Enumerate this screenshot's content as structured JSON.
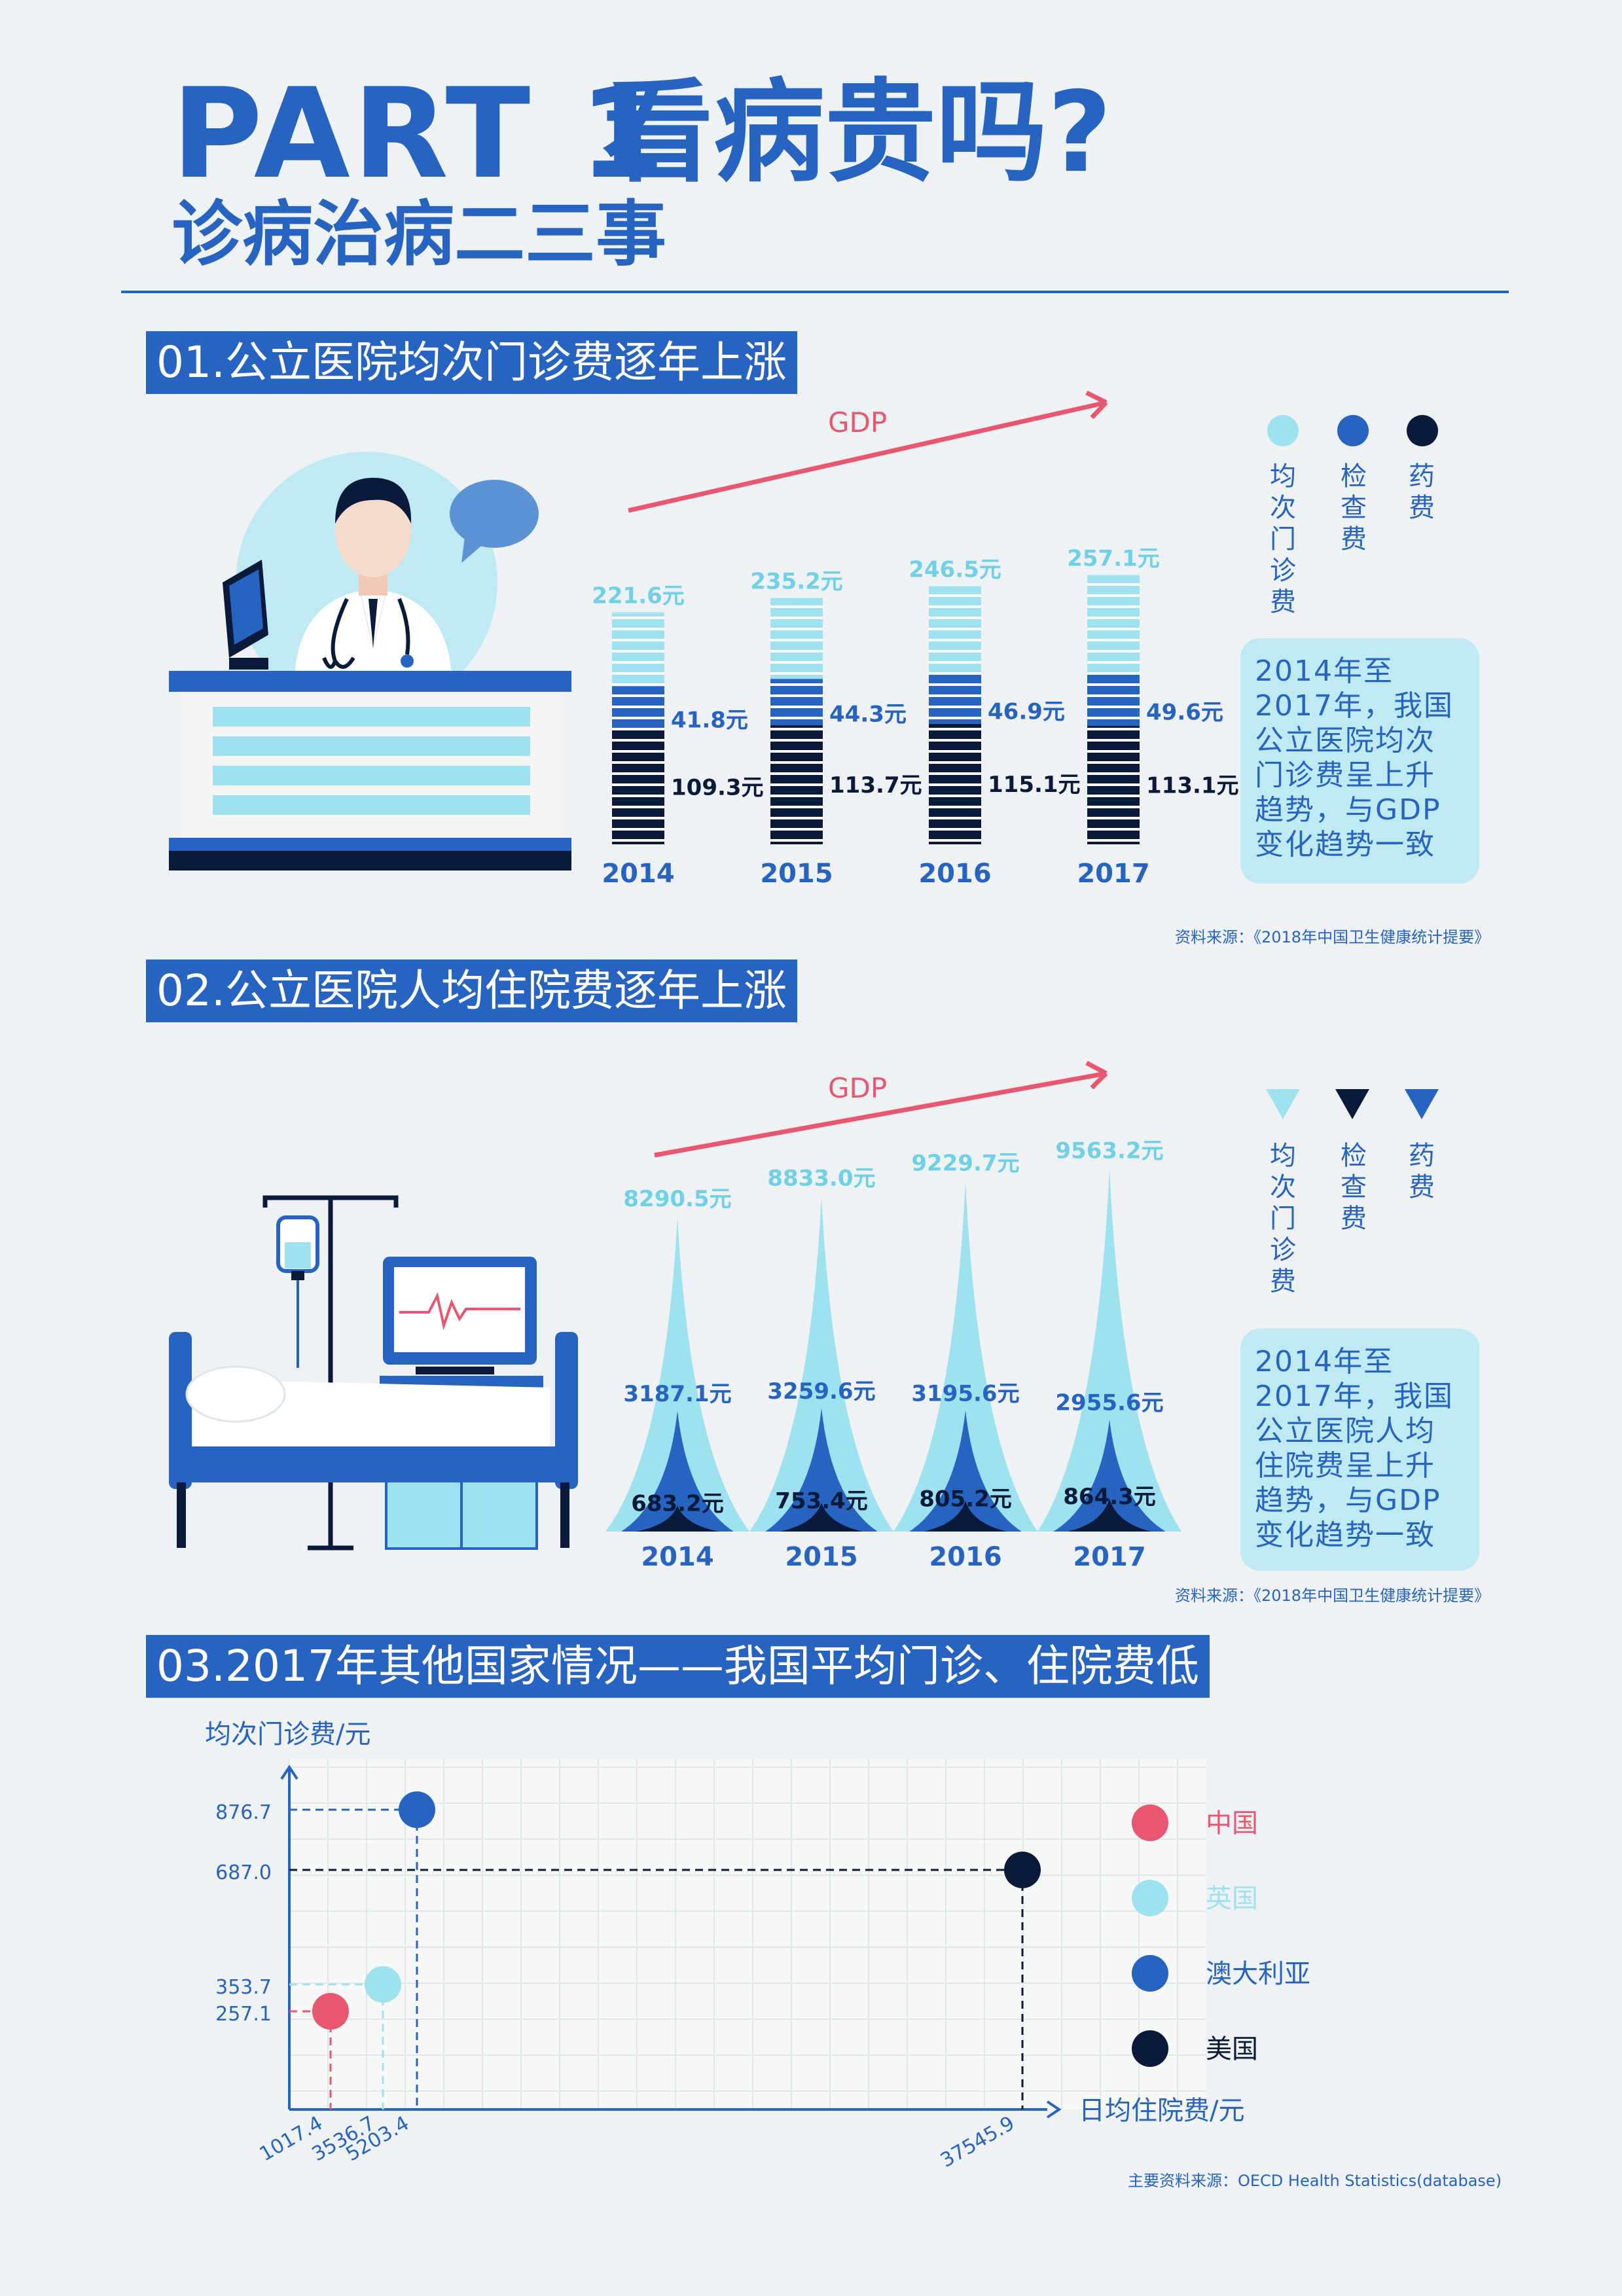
{
  "header": {
    "title_part": "PART 1",
    "title_question": "看病贵吗?",
    "subtitle": "诊病治病二三事"
  },
  "section1": {
    "heading": "01.公立医院均次门诊费逐年上涨",
    "gdp_label": "GDP",
    "legend": [
      "均次门诊费",
      "检查费",
      "药费"
    ],
    "note": "2014年至2017年，我国公立医院均次门诊费呈上升趋势，与GDP变化趋势一致",
    "source": "资料来源：《2018年中国卫生健康统计提要》"
  },
  "section2": {
    "heading": "02.公立医院人均住院费逐年上涨",
    "gdp_label": "GDP",
    "legend": [
      "均次门诊费",
      "检查费",
      "药费"
    ],
    "note": "2014年至2017年，我国公立医院人均住院费呈上升趋势，与GDP变化趋势一致",
    "source": "资料来源：《2018年中国卫生健康统计提要》"
  },
  "section3": {
    "heading": "03.2017年其他国家情况——我国平均门诊、住院费低",
    "source": "主要资料来源：OECD Health Statistics(database)"
  },
  "colors": {
    "primary": "#2763c1",
    "light": "#9fe2ef",
    "dark": "#0a1a3a",
    "china": "#e8566f",
    "gdp_arrow": "#e8566f"
  },
  "chart_data": [
    {
      "type": "bar",
      "title": "01.公立医院均次门诊费逐年上涨",
      "categories": [
        "2014",
        "2015",
        "2016",
        "2017"
      ],
      "unit": "元",
      "series": [
        {
          "name": "均次门诊费",
          "values": [
            221.6,
            235.2,
            246.5,
            257.1
          ],
          "labels": [
            "221.6元",
            "235.2元",
            "246.5元",
            "257.1元"
          ]
        },
        {
          "name": "检查费",
          "values": [
            41.8,
            44.3,
            46.9,
            49.6
          ],
          "labels": [
            "41.8元",
            "44.3元",
            "46.9元",
            "49.6元"
          ]
        },
        {
          "name": "药费",
          "values": [
            109.3,
            113.7,
            115.1,
            113.1
          ],
          "labels": [
            "109.3元",
            "113.7元",
            "115.1元",
            "113.1元"
          ]
        }
      ]
    },
    {
      "type": "area",
      "title": "02.公立医院人均住院费逐年上涨",
      "categories": [
        "2014",
        "2015",
        "2016",
        "2017"
      ],
      "unit": "元",
      "series": [
        {
          "name": "均次门诊费",
          "values": [
            8290.5,
            8833.0,
            9229.7,
            9563.2
          ],
          "labels": [
            "8290.5元",
            "8833.0元",
            "9229.7元",
            "9563.2元"
          ]
        },
        {
          "name": "检查费",
          "values": [
            3187.1,
            3259.6,
            3195.6,
            2955.6
          ],
          "labels": [
            "3187.1元",
            "3259.6元",
            "3195.6元",
            "2955.6元"
          ]
        },
        {
          "name": "药费",
          "values": [
            683.2,
            753.4,
            805.2,
            864.3
          ],
          "labels": [
            "683.2元",
            "753.4元",
            "805.2元",
            "864.3元"
          ]
        }
      ]
    },
    {
      "type": "scatter",
      "title": "03.2017年其他国家情况——我国平均门诊、住院费低",
      "xlabel": "日均住院费/元",
      "ylabel": "均次门诊费/元",
      "legend_position": "right",
      "grid": true,
      "points": [
        {
          "name": "中国",
          "x": 1017.4,
          "y": 257.1,
          "x_label": "1017.4",
          "y_label": "257.1",
          "color": "#e8566f"
        },
        {
          "name": "英国",
          "x": 3536.7,
          "y": 353.7,
          "x_label": "3536.7",
          "y_label": "353.7",
          "color": "#9fe2ef"
        },
        {
          "name": "澳大利亚",
          "x": 5203.4,
          "y": 876.7,
          "x_label": "5203.4",
          "y_label": "876.7",
          "color": "#2763c1"
        },
        {
          "name": "美国",
          "x": 37545.9,
          "y": 687.0,
          "x_label": "37545.9",
          "y_label": "687.0",
          "color": "#0a1a3a"
        }
      ]
    }
  ]
}
